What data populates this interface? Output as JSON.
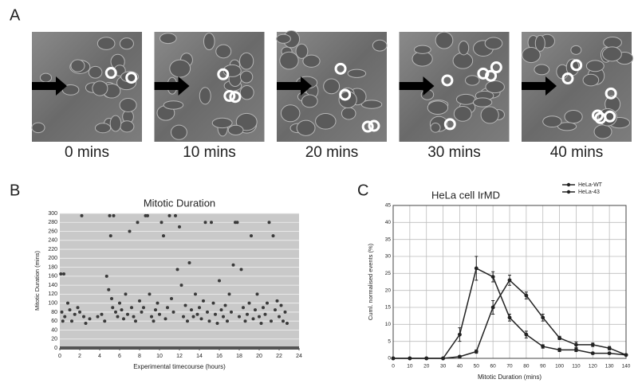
{
  "figure": {
    "panel_labels": [
      "A",
      "B",
      "C"
    ],
    "captions": [
      "0 mins",
      "10 mins",
      "20 mins",
      "30 mins",
      "40 mins"
    ]
  },
  "chart_data": [
    {
      "type": "scatter",
      "title": "Mitotic Duration",
      "x_label": "Experimental timecourse (hours)",
      "y_label": "Mitotic Duration (mins)",
      "color": "#3a3a3a",
      "background": "#c9c9c9",
      "grid": true,
      "xlim": [
        0,
        24
      ],
      "xticks": [
        0,
        2,
        4,
        6,
        8,
        10,
        12,
        14,
        16,
        18,
        20,
        22,
        24
      ],
      "ylim": [
        0,
        300
      ],
      "yticks": [
        0,
        20,
        40,
        60,
        80,
        100,
        120,
        140,
        160,
        180,
        200,
        220,
        240,
        260,
        280,
        300
      ],
      "x": [
        0.1,
        0.4,
        0.2,
        0.3,
        0.5,
        0.8,
        1,
        1.2,
        1.5,
        1.8,
        2,
        2.2,
        2.4,
        2.6,
        3,
        3.8,
        4.2,
        4.5,
        4.7,
        4.9,
        5,
        5.1,
        5.2,
        5.3,
        5.4,
        5.6,
        5.8,
        6,
        6.2,
        6.4,
        6.6,
        6.8,
        7,
        7.2,
        7.4,
        7.6,
        7.8,
        8,
        8.2,
        8.4,
        8.6,
        8.8,
        9,
        9.2,
        9.4,
        9.6,
        9.8,
        10,
        10.2,
        10.4,
        10.6,
        10.8,
        11,
        11.2,
        11.4,
        11.6,
        11.8,
        12,
        12.2,
        12.4,
        12.6,
        12.8,
        13,
        13.2,
        13.4,
        13.6,
        13.8,
        14,
        14.2,
        14.4,
        14.6,
        14.8,
        15,
        15.2,
        15.4,
        15.6,
        15.8,
        16,
        16.2,
        16.4,
        16.6,
        16.8,
        17,
        17.2,
        17.4,
        17.6,
        17.8,
        18,
        18.2,
        18.4,
        18.6,
        18.8,
        19,
        19.2,
        19.4,
        19.6,
        19.8,
        20,
        20.2,
        20.4,
        20.6,
        20.8,
        21,
        21.2,
        21.4,
        21.6,
        21.8,
        22,
        22.2,
        22.4,
        22.6,
        22.8
      ],
      "values": [
        165,
        165,
        80,
        60,
        70,
        100,
        85,
        60,
        75,
        90,
        80,
        295,
        70,
        55,
        65,
        70,
        75,
        60,
        160,
        130,
        295,
        250,
        110,
        90,
        295,
        80,
        70,
        100,
        85,
        65,
        120,
        75,
        260,
        90,
        70,
        60,
        280,
        105,
        80,
        90,
        295,
        295,
        120,
        70,
        60,
        85,
        100,
        75,
        280,
        250,
        65,
        90,
        295,
        110,
        80,
        295,
        175,
        270,
        140,
        70,
        95,
        60,
        190,
        85,
        70,
        120,
        75,
        90,
        65,
        105,
        280,
        80,
        60,
        280,
        100,
        75,
        55,
        150,
        85,
        70,
        95,
        60,
        120,
        80,
        185,
        280,
        280,
        70,
        175,
        90,
        60,
        75,
        100,
        250,
        65,
        85,
        120,
        70,
        55,
        90,
        75,
        100,
        280,
        60,
        250,
        85,
        105,
        70,
        95,
        60,
        80,
        55
      ]
    },
    {
      "type": "line",
      "title": "HeLa cell IrMD",
      "x_label": "Mitotic Duration (mins)",
      "y_label": "Cuml. normalised events (%)",
      "grid": true,
      "legend": "top-right",
      "xlim": [
        0,
        140
      ],
      "xticks": [
        0,
        10,
        20,
        30,
        40,
        50,
        60,
        70,
        80,
        90,
        100,
        110,
        120,
        130,
        140
      ],
      "ylim": [
        0,
        45
      ],
      "yticks": [
        0,
        5,
        10,
        15,
        20,
        25,
        30,
        35,
        40,
        45
      ],
      "x": [
        0,
        10,
        20,
        30,
        40,
        50,
        60,
        70,
        80,
        90,
        100,
        110,
        120,
        130,
        140
      ],
      "series": [
        {
          "name": "HeLa-WT",
          "color": "#222222",
          "values": [
            0,
            0,
            0,
            0,
            7,
            26.5,
            24,
            12,
            7,
            3.5,
            2.5,
            2.5,
            1.5,
            1.5,
            1
          ],
          "errors": [
            0,
            0,
            0,
            0,
            2,
            3.5,
            1.5,
            1,
            1,
            0.5,
            0.5,
            0.5,
            0.3,
            0.3,
            0.3
          ]
        },
        {
          "name": "HeLa-43",
          "color": "#222222",
          "values": [
            0,
            0,
            0,
            0,
            0.5,
            2,
            15,
            23,
            18.5,
            12,
            6,
            4,
            4,
            3,
            1
          ],
          "errors": [
            0,
            0,
            0,
            0,
            0.3,
            0.5,
            2,
            1.5,
            1,
            1,
            0.5,
            0.8,
            0.5,
            0.5,
            0.3
          ]
        }
      ]
    }
  ]
}
